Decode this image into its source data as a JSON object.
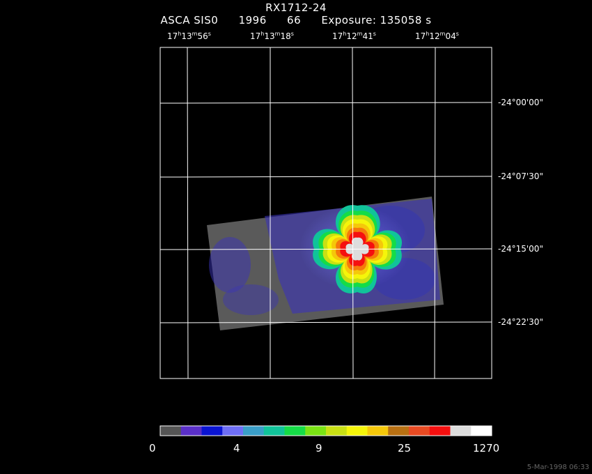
{
  "header": {
    "title": "RX1712-24",
    "instrument": "ASCA SIS0",
    "year": "1996",
    "seq": "66",
    "exposure": "Exposure: 135058 s"
  },
  "ra_ticks": [
    {
      "h": "17",
      "m": "13",
      "s": "56"
    },
    {
      "h": "17",
      "m": "13",
      "s": "18"
    },
    {
      "h": "17",
      "m": "12",
      "s": "41"
    },
    {
      "h": "17",
      "m": "12",
      "s": "04"
    }
  ],
  "dec_ticks": [
    "-24°00'00\"",
    "-24°07'30\"",
    "-24°15'00\"",
    "-24°22'30\""
  ],
  "colorbar": {
    "colors": [
      "#555555",
      "#5a2fc8",
      "#0a14d2",
      "#6e6ef5",
      "#3a9ec8",
      "#11c39a",
      "#15dc47",
      "#7ae314",
      "#c8e014",
      "#f5f50a",
      "#f5c80a",
      "#b87012",
      "#e84a22",
      "#f50f0f",
      "#dddddd",
      "#ffffff"
    ],
    "labels": [
      "0",
      "4",
      "9",
      "25",
      "1270"
    ]
  },
  "timestamp": "5-Mar-1998 06:33"
}
